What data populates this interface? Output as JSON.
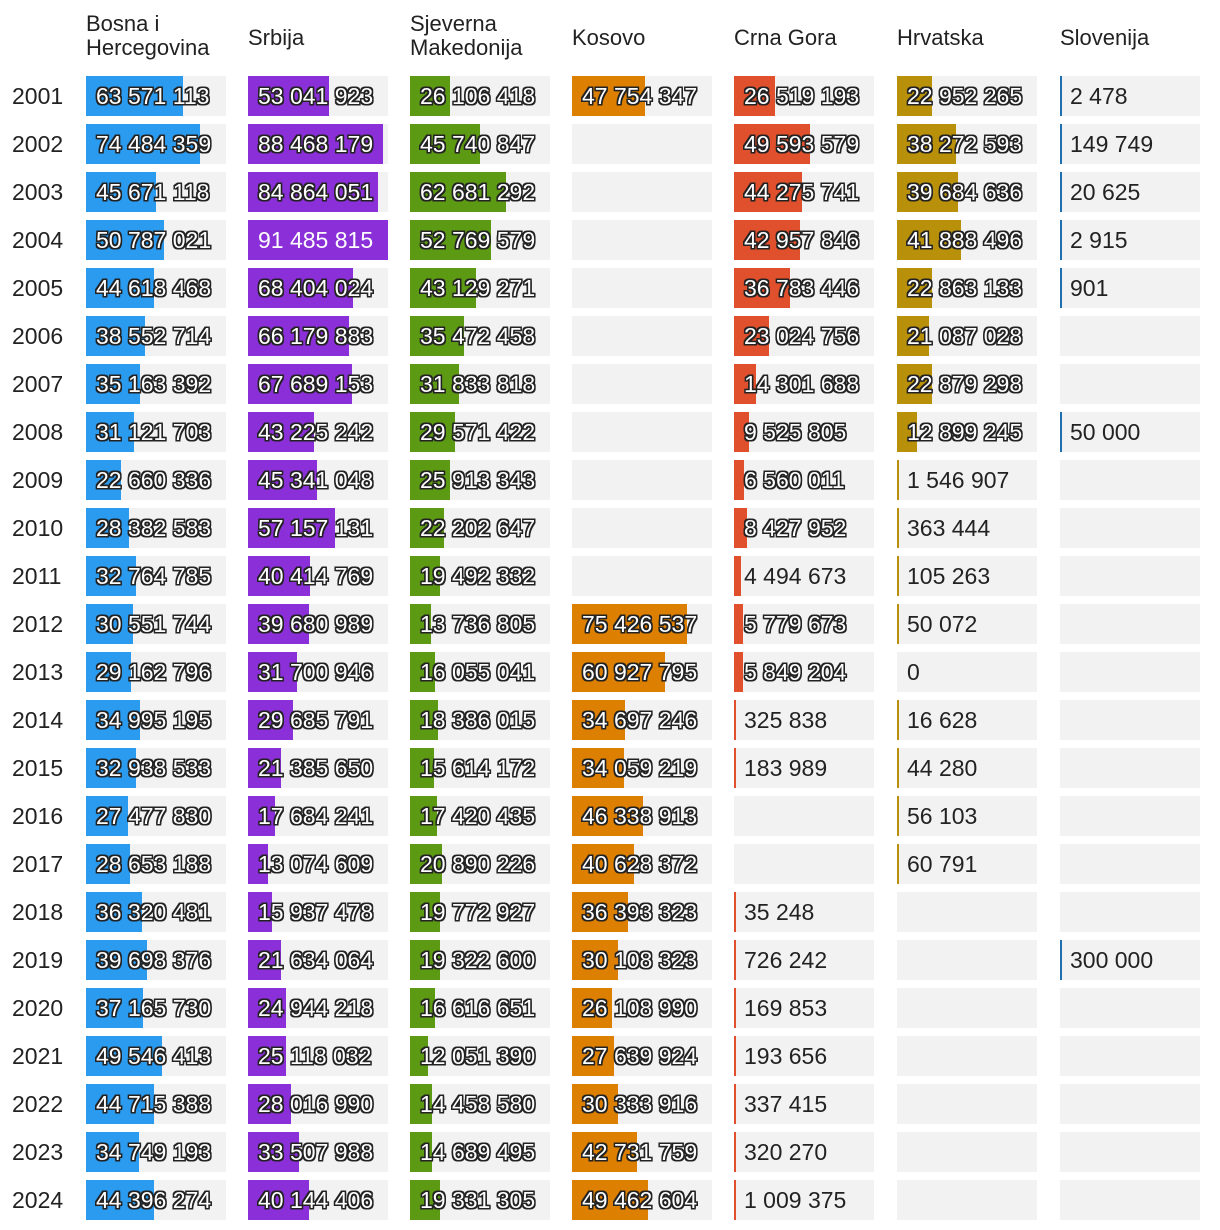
{
  "chart_data": {
    "type": "table",
    "title": "",
    "years": [
      "2001",
      "2002",
      "2003",
      "2004",
      "2005",
      "2006",
      "2007",
      "2008",
      "2009",
      "2010",
      "2011",
      "2012",
      "2013",
      "2014",
      "2015",
      "2016",
      "2017",
      "2018",
      "2019",
      "2020",
      "2021",
      "2022",
      "2023",
      "2024"
    ],
    "max_value": 91485815,
    "series": [
      {
        "name": "Bosna i\nHercegovina",
        "color": "#2b9bf0",
        "values": [
          63571113,
          74484359,
          45671118,
          50787021,
          44618468,
          38552714,
          35163392,
          31121703,
          22660336,
          28382583,
          32764785,
          30551744,
          29162796,
          34995195,
          32938533,
          27477830,
          28653188,
          36320481,
          39698376,
          37165730,
          49546413,
          44715388,
          34749193,
          44396274
        ]
      },
      {
        "name": "Srbija",
        "color": "#8b2fd9",
        "values": [
          53041923,
          88468179,
          84864051,
          91485815,
          68404024,
          66179883,
          67689153,
          43225242,
          45341048,
          57157131,
          40414769,
          39680989,
          31700946,
          29685791,
          21385650,
          17684241,
          13074609,
          15937478,
          21634064,
          24944218,
          25118032,
          28016990,
          33507988,
          40144406
        ]
      },
      {
        "name": "Sjeverna\nMakedonija",
        "color": "#5c9a14",
        "values": [
          26106418,
          45740847,
          62681292,
          52769579,
          43129271,
          35472458,
          31833818,
          29571422,
          25913343,
          22202647,
          19492332,
          13736805,
          16055041,
          18386015,
          15614172,
          17420435,
          20890226,
          19772927,
          19322600,
          16616651,
          12051390,
          14458580,
          14689495,
          19331305
        ]
      },
      {
        "name": "Kosovo",
        "color": "#dd7f00",
        "values": [
          47754347,
          null,
          null,
          null,
          null,
          null,
          null,
          null,
          null,
          null,
          null,
          75426537,
          60927795,
          34697246,
          34059219,
          46338913,
          40628372,
          36393323,
          30108323,
          26108990,
          27639924,
          30333916,
          42731759,
          49462604
        ]
      },
      {
        "name": "Crna Gora",
        "color": "#e0502d",
        "values": [
          26519193,
          49593579,
          44275741,
          42957846,
          36783446,
          23024756,
          14301688,
          9525805,
          6560011,
          8427952,
          4494673,
          5779673,
          5849204,
          325838,
          183989,
          null,
          null,
          35248,
          726242,
          169853,
          193656,
          337415,
          320270,
          1009375
        ]
      },
      {
        "name": "Hrvatska",
        "color": "#b8900a",
        "values": [
          22952265,
          38272593,
          39684636,
          41888496,
          22863133,
          21087028,
          22879298,
          12899245,
          1546907,
          363444,
          105263,
          50072,
          0,
          16628,
          44280,
          56103,
          60791,
          null,
          null,
          null,
          null,
          null,
          null,
          null
        ]
      },
      {
        "name": "Slovenija",
        "color": "#1f6fb0",
        "values": [
          2478,
          149749,
          20625,
          2915,
          901,
          null,
          null,
          50000,
          null,
          null,
          null,
          null,
          null,
          null,
          null,
          null,
          null,
          null,
          300000,
          null,
          null,
          null,
          null,
          null
        ]
      }
    ]
  }
}
